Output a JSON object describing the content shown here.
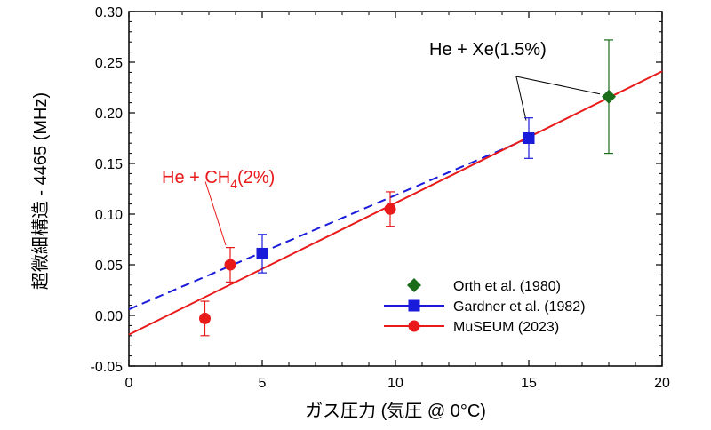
{
  "chart_data": {
    "type": "scatter",
    "xlabel": "ガス圧力 (気圧 @ 0°C)",
    "ylabel": "超微細構造 - 4465 (MHz)",
    "xlim": [
      0,
      20
    ],
    "ylim": [
      -0.05,
      0.3
    ],
    "xticks": [
      "0",
      "5",
      "10",
      "15",
      "20"
    ],
    "yticks": [
      "-0.05",
      "0.00",
      "0.05",
      "0.10",
      "0.15",
      "0.20",
      "0.25",
      "0.30"
    ],
    "grid": false,
    "legend_position": "bottom-right",
    "series": [
      {
        "name": "Orth et al. (1980)",
        "marker": "diamond",
        "color": "#1a6b1a",
        "points": [
          {
            "x": 18.0,
            "y": 0.216,
            "err": 0.056
          }
        ]
      },
      {
        "name": "Gardner et al. (1982)",
        "marker": "square",
        "color": "#1a1adb",
        "fit_line": {
          "style": "dashed",
          "x": [
            0,
            15
          ],
          "y": [
            0.006,
            0.175
          ]
        },
        "points": [
          {
            "x": 5.0,
            "y": 0.061,
            "err": 0.019
          },
          {
            "x": 15.0,
            "y": 0.175,
            "err": 0.02
          }
        ]
      },
      {
        "name": "MuSEUM (2023)",
        "marker": "circle",
        "color": "#e81a1a",
        "fit_line": {
          "style": "solid",
          "x": [
            0,
            20
          ],
          "y": [
            -0.019,
            0.241
          ]
        },
        "points": [
          {
            "x": 2.85,
            "y": -0.003,
            "err": 0.017
          },
          {
            "x": 3.8,
            "y": 0.05,
            "err": 0.017
          },
          {
            "x": 9.8,
            "y": 0.105,
            "err": 0.017
          }
        ]
      }
    ],
    "annotations": [
      {
        "text": "He + Xe(1.5%)",
        "color": "#000000"
      },
      {
        "text_main": "He + CH",
        "subscript": "4",
        "text_tail": "(2%)",
        "color": "#e81a1a"
      }
    ]
  }
}
